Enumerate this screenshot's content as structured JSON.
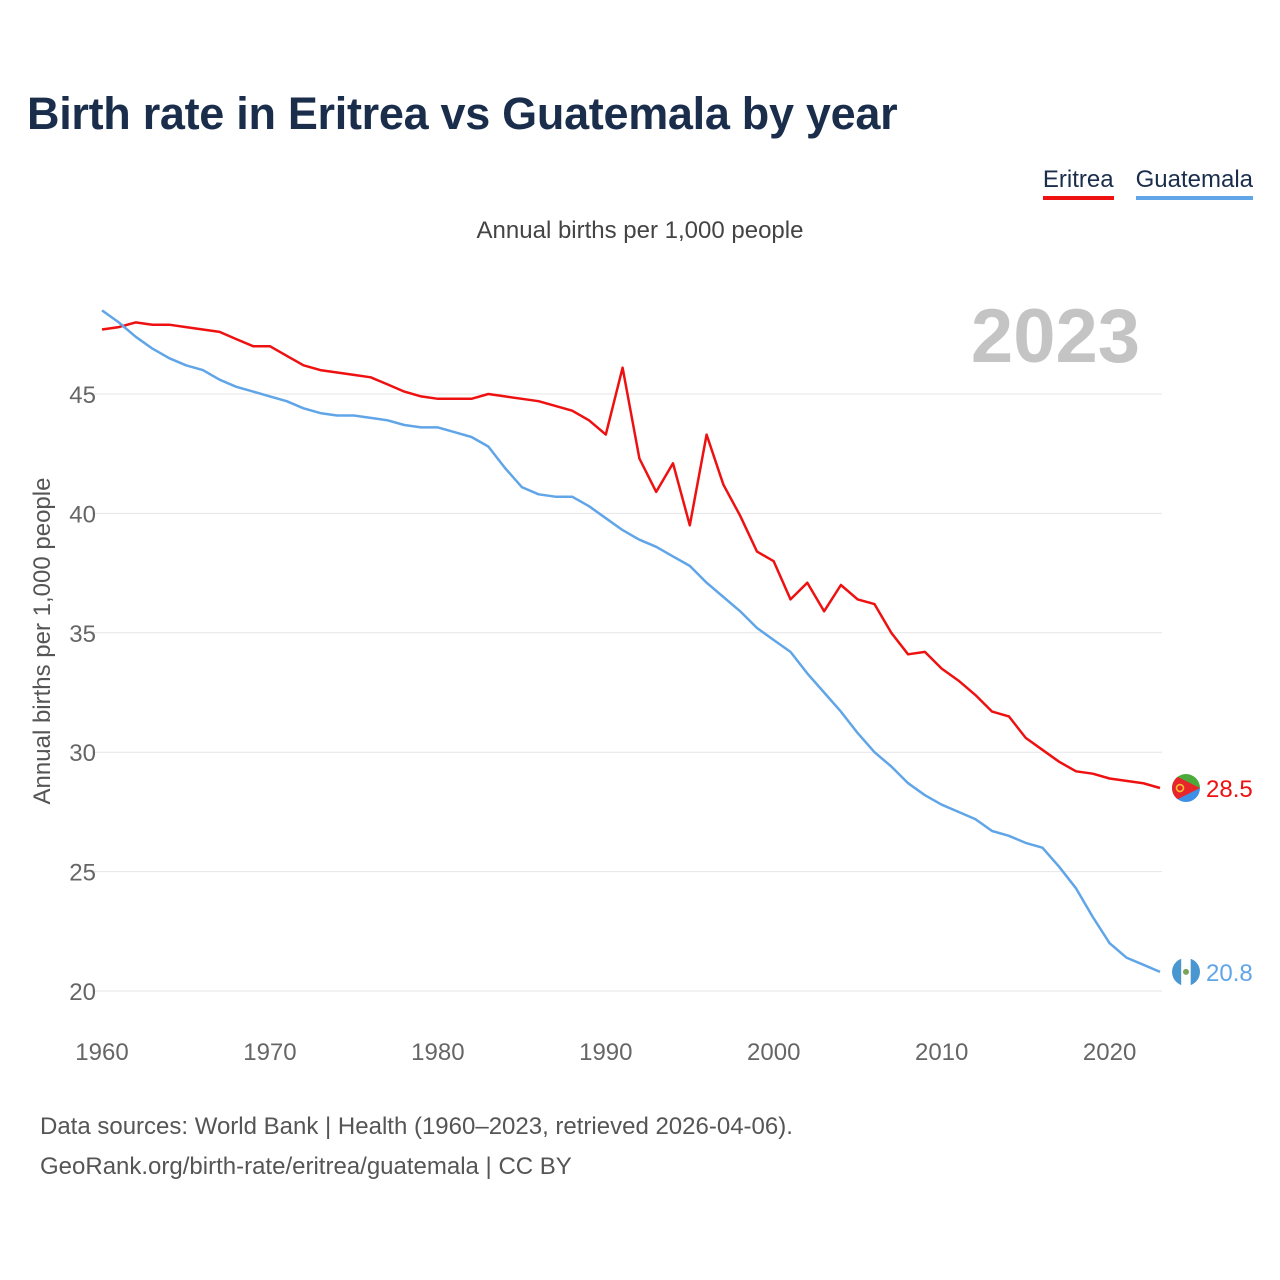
{
  "title": "Birth rate in Eritrea vs Guatemala by year",
  "subtitle": "Annual births per 1,000 people",
  "legend": [
    {
      "label": "Eritrea",
      "color": "#ee1111"
    },
    {
      "label": "Guatemala",
      "color": "#60a5e8"
    }
  ],
  "year_watermark": "2023",
  "footer": {
    "line1": "Data sources: World Bank | Health (1960–2023, retrieved 2026-04-06).",
    "line2": "GeoRank.org/birth-rate/eritrea/guatemala | CC BY"
  },
  "chart_data": {
    "type": "line",
    "title": "Birth rate in Eritrea vs Guatemala by year",
    "xlabel": "",
    "ylabel": "Annual births per 1,000 people",
    "xlim": [
      1960,
      2023
    ],
    "ylim": [
      20,
      48.5
    ],
    "x_ticks": [
      1960,
      1970,
      1980,
      1990,
      2000,
      2010,
      2020
    ],
    "y_ticks": [
      20,
      25,
      30,
      35,
      40,
      45
    ],
    "grid": true,
    "legend_position": "top-right",
    "end_labels": [
      "28.5",
      "20.8"
    ],
    "x": [
      1960,
      1961,
      1962,
      1963,
      1964,
      1965,
      1966,
      1967,
      1968,
      1969,
      1970,
      1971,
      1972,
      1973,
      1974,
      1975,
      1976,
      1977,
      1978,
      1979,
      1980,
      1981,
      1982,
      1983,
      1984,
      1985,
      1986,
      1987,
      1988,
      1989,
      1990,
      1991,
      1992,
      1993,
      1994,
      1995,
      1996,
      1997,
      1998,
      1999,
      2000,
      2001,
      2002,
      2003,
      2004,
      2005,
      2006,
      2007,
      2008,
      2009,
      2010,
      2011,
      2012,
      2013,
      2014,
      2015,
      2016,
      2017,
      2018,
      2019,
      2020,
      2021,
      2022,
      2023
    ],
    "series": [
      {
        "name": "Eritrea",
        "color": "#ee1111",
        "values": [
          47.7,
          47.8,
          48.0,
          47.9,
          47.9,
          47.8,
          47.7,
          47.6,
          47.3,
          47.0,
          47.0,
          46.6,
          46.2,
          46.0,
          45.9,
          45.8,
          45.7,
          45.4,
          45.1,
          44.9,
          44.8,
          44.8,
          44.8,
          45.0,
          44.9,
          44.8,
          44.7,
          44.5,
          44.3,
          43.9,
          43.3,
          46.1,
          42.3,
          40.9,
          42.1,
          39.5,
          43.3,
          41.2,
          39.9,
          38.4,
          38.0,
          36.4,
          37.1,
          35.9,
          37.0,
          36.4,
          36.2,
          35.0,
          34.1,
          34.2,
          33.5,
          33.0,
          32.4,
          31.7,
          31.5,
          30.6,
          30.1,
          29.6,
          29.2,
          29.1,
          28.9,
          28.8,
          28.7,
          28.5
        ]
      },
      {
        "name": "Guatemala",
        "color": "#60a5e8",
        "values": [
          48.5,
          48.0,
          47.4,
          46.9,
          46.5,
          46.2,
          46.0,
          45.6,
          45.3,
          45.1,
          44.9,
          44.7,
          44.4,
          44.2,
          44.1,
          44.1,
          44.0,
          43.9,
          43.7,
          43.6,
          43.6,
          43.4,
          43.2,
          42.8,
          41.9,
          41.1,
          40.8,
          40.7,
          40.7,
          40.3,
          39.8,
          39.3,
          38.9,
          38.6,
          38.2,
          37.8,
          37.1,
          36.5,
          35.9,
          35.2,
          34.7,
          34.2,
          33.3,
          32.5,
          31.7,
          30.8,
          30.0,
          29.4,
          28.7,
          28.2,
          27.8,
          27.5,
          27.2,
          26.7,
          26.5,
          26.2,
          26.0,
          25.2,
          24.3,
          23.1,
          22.0,
          21.4,
          21.1,
          20.8
        ]
      }
    ]
  }
}
